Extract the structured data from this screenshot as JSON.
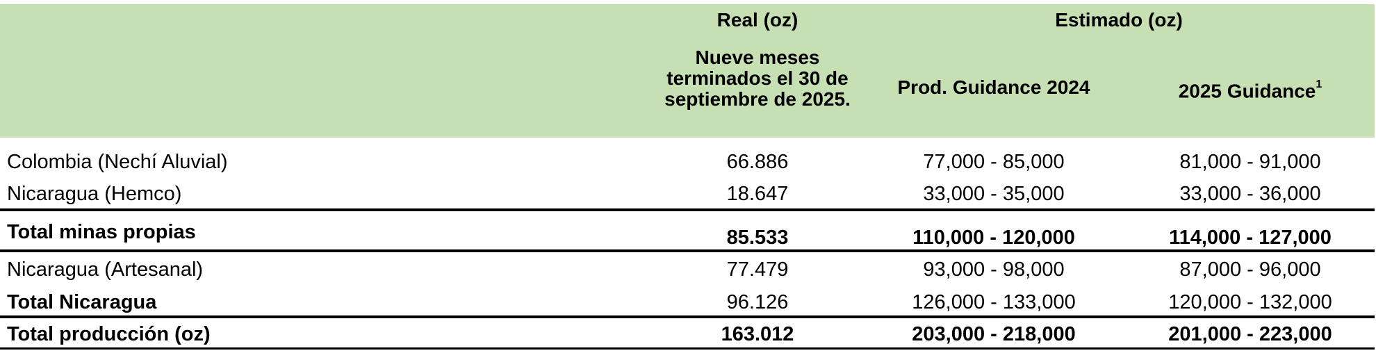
{
  "header": {
    "real": "Real (oz)",
    "estimado": "Estimado (oz)",
    "nueve_meses": "Nueve meses terminados el 30 de septiembre de 2025.",
    "prod_guidance": "Prod. Guidance 2024",
    "guidance_2025": "2025 Guidance",
    "guidance_2025_sup": "1"
  },
  "rows": [
    {
      "label": "Colombia (Nechí Aluvial)",
      "real": "66.886",
      "g2024": "77,000 - 85,000",
      "g2025": "81,000 - 91,000",
      "bold": false
    },
    {
      "label": "Nicaragua (Hemco)",
      "real": "18.647",
      "g2024": "33,000 - 35,000",
      "g2025": "33,000 - 36,000",
      "bold": false
    },
    {
      "label": "Total minas propias",
      "real": "85.533",
      "g2024": "110,000 - 120,000",
      "g2025": "114,000 - 127,000",
      "bold": true
    },
    {
      "label": "Nicaragua (Artesanal)",
      "real": "77.479",
      "g2024": "93,000 - 98,000",
      "g2025": "87,000 - 96,000",
      "bold": false
    },
    {
      "label": "Total Nicaragua",
      "real": "96.126",
      "g2024": "126,000 - 133,000",
      "g2025": "120,000 - 132,000",
      "bold": false
    },
    {
      "label": "Total producción (oz)",
      "real": "163.012",
      "g2024": "203,000 - 218,000",
      "g2025": "201,000 - 223,000",
      "bold": true
    }
  ]
}
